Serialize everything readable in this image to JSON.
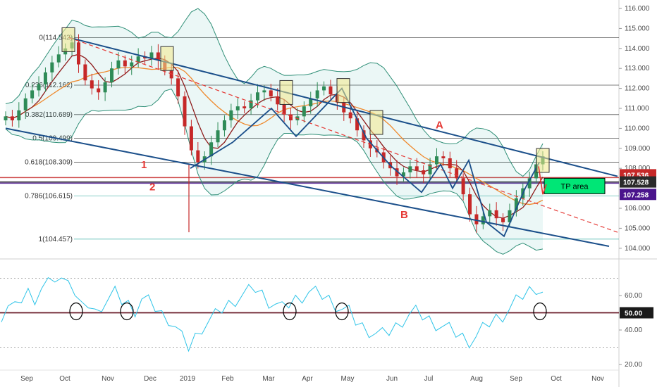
{
  "chart_data": [
    {
      "type": "candlestick",
      "ylim": [
        103.7,
        116.3
      ],
      "y_ticks": [
        "116.000",
        "115.000",
        "114.000",
        "113.000",
        "112.000",
        "111.000",
        "110.000",
        "109.000",
        "108.000",
        "106.000",
        "105.000",
        "104.000"
      ],
      "x_ticks": [
        "Sep",
        "Oct",
        "Nov",
        "Dec",
        "2019",
        "Feb",
        "Mar",
        "Apr",
        "May",
        "Jun",
        "Jul",
        "Aug",
        "Sep",
        "Oct",
        "Nov"
      ],
      "fib_levels": [
        {
          "label": "0(114.542)",
          "value": 114.542
        },
        {
          "label": "0.236(112.162)",
          "value": 112.162
        },
        {
          "label": "0.382(110.689)",
          "value": 110.689
        },
        {
          "label": "0.5(109.499)",
          "value": 109.499
        },
        {
          "label": "0.618(108.309)",
          "value": 108.309
        },
        {
          "label": "0.786(106.615)",
          "value": 106.615
        },
        {
          "label": "1(104.457)",
          "value": 104.457
        }
      ],
      "price_badges": [
        {
          "label": "107.536",
          "value": 107.536,
          "color": "#c62828"
        },
        {
          "label": "107.528",
          "value": 107.528,
          "color": "#2a2a2a"
        },
        {
          "label": "107.258",
          "value": 107.258,
          "color": "#4a148c"
        }
      ],
      "annotations": [
        "1",
        "2",
        "A",
        "B"
      ],
      "tp_label": "TP area",
      "close_approx": [
        110.6,
        110.4,
        110.9,
        111.5,
        111.9,
        112.2,
        112.8,
        113.3,
        113.7,
        114.0,
        114.3,
        113.2,
        112.4,
        112.0,
        111.8,
        112.3,
        113.0,
        113.4,
        113.1,
        113.3,
        113.6,
        113.5,
        113.8,
        113.4,
        112.9,
        112.5,
        111.6,
        110.1,
        108.9,
        108.3,
        108.6,
        109.3,
        109.9,
        110.4,
        110.9,
        111.1,
        111.0,
        111.4,
        111.8,
        111.9,
        111.6,
        111.2,
        110.7,
        110.4,
        110.6,
        111.1,
        111.5,
        111.9,
        112.1,
        111.7,
        111.3,
        110.8,
        110.5,
        109.9,
        109.4,
        109.0,
        108.8,
        108.3,
        108.0,
        107.6,
        107.8,
        108.1,
        107.9,
        107.7,
        108.2,
        108.6,
        108.5,
        108.0,
        107.5,
        106.7,
        105.7,
        105.2,
        105.6,
        105.9,
        105.5,
        105.3,
        105.9,
        106.5,
        107.0,
        107.5,
        108.2,
        108.6
      ]
    },
    {
      "type": "line",
      "ylim": [
        18.0,
        78.0
      ],
      "y_ticks": [
        "60.00",
        "40.00",
        "20.00"
      ],
      "reference_line": {
        "label": "50.00",
        "value": 50.0
      },
      "dotted_levels": [
        70.0,
        30.0
      ],
      "values_approx": [
        49,
        54,
        52,
        58,
        62,
        59,
        64,
        66,
        70,
        68,
        73,
        60,
        52,
        55,
        50,
        55,
        58,
        61,
        57,
        55,
        52,
        58,
        56,
        53,
        49,
        47,
        42,
        35,
        30,
        36,
        42,
        45,
        48,
        52,
        55,
        58,
        60,
        62,
        64,
        61,
        57,
        55,
        52,
        55,
        58,
        60,
        62,
        61,
        60,
        58,
        55,
        52,
        50,
        45,
        42,
        40,
        38,
        37,
        39,
        42,
        46,
        49,
        50,
        48,
        46,
        44,
        42,
        40,
        38,
        36,
        34,
        36,
        40,
        44,
        47,
        49,
        52,
        56,
        60,
        63,
        65,
        62
      ]
    }
  ]
}
